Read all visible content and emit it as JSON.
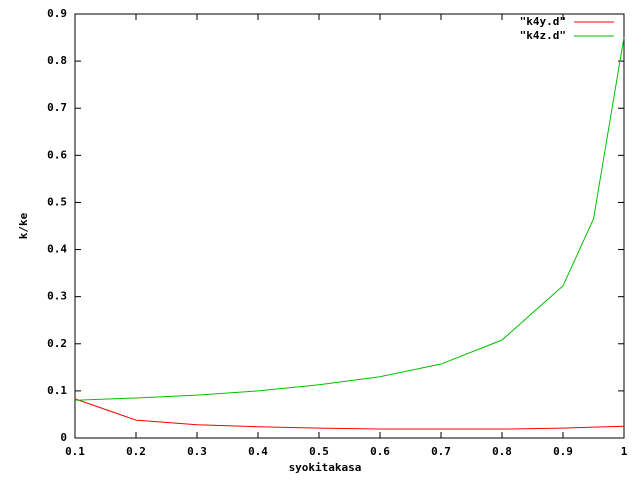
{
  "chart_data": {
    "type": "line",
    "x_label": "syokitakasa",
    "y_label": "k/ke",
    "x": [
      0.1,
      0.2,
      0.3,
      0.4,
      0.5,
      0.6,
      0.7,
      0.8,
      0.9,
      0.95,
      1
    ],
    "series": [
      {
        "name": "\"k4y.d\"",
        "color": "#ff0000",
        "values": [
          0.083,
          0.038,
          0.028,
          0.024,
          0.021,
          0.019,
          0.019,
          0.019,
          0.021,
          0.023,
          0.025
        ]
      },
      {
        "name": "\"k4z.d\"",
        "color": "#00c000",
        "values": [
          0.08,
          0.085,
          0.091,
          0.1,
          0.113,
          0.13,
          0.157,
          0.208,
          0.323,
          0.465,
          0.851
        ]
      }
    ],
    "xlim": [
      0.1,
      1
    ],
    "xticks": [
      0.1,
      0.2,
      0.3,
      0.4,
      0.5,
      0.6,
      0.7,
      0.8,
      0.9,
      1
    ],
    "ylim": [
      0,
      0.9
    ],
    "yticks": [
      0,
      0.1,
      0.2,
      0.3,
      0.4,
      0.5,
      0.6,
      0.7,
      0.8,
      0.9
    ],
    "grid": false,
    "legend": "top-right"
  }
}
